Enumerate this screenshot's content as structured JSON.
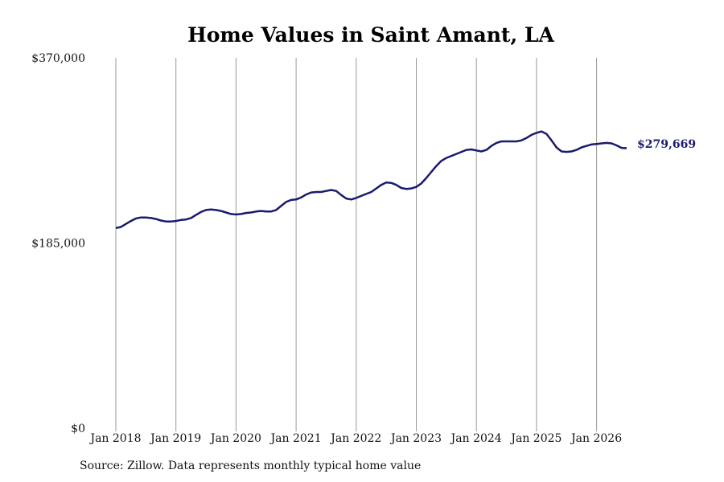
{
  "chart_data": {
    "type": "line",
    "title": "Home Values in Saint Amant, LA",
    "xlabel": "",
    "ylabel": "",
    "ylim": [
      0,
      370000
    ],
    "y_ticks": [
      "$0",
      "$185,000",
      "$370,000"
    ],
    "y_tick_values": [
      0,
      185000,
      370000
    ],
    "x_ticks": [
      "Jan 2018",
      "Jan 2019",
      "Jan 2020",
      "Jan 2021",
      "Jan 2022",
      "Jan 2023",
      "Jan 2024",
      "Jan 2025",
      "Jan 2026"
    ],
    "grid": "vertical",
    "line_color": "#1a1a6e",
    "end_label": "$279,669",
    "series": [
      {
        "x": [
          "2018-01",
          "2018-02",
          "2018-03",
          "2018-04",
          "2018-05",
          "2018-06",
          "2018-07",
          "2018-08",
          "2018-09",
          "2018-10",
          "2018-11",
          "2018-12",
          "2019-01",
          "2019-02",
          "2019-03",
          "2019-04",
          "2019-05",
          "2019-06",
          "2019-07",
          "2019-08",
          "2019-09",
          "2019-10",
          "2019-11",
          "2019-12",
          "2020-01",
          "2020-02",
          "2020-03",
          "2020-04",
          "2020-05",
          "2020-06",
          "2020-07",
          "2020-08",
          "2020-09",
          "2020-10",
          "2020-11",
          "2020-12",
          "2021-01",
          "2021-02",
          "2021-03",
          "2021-04",
          "2021-05",
          "2021-06",
          "2021-07",
          "2021-08",
          "2021-09",
          "2021-10",
          "2021-11",
          "2021-12",
          "2022-01",
          "2022-02",
          "2022-03",
          "2022-04",
          "2022-05",
          "2022-06",
          "2022-07",
          "2022-08",
          "2022-09",
          "2022-10",
          "2022-11",
          "2022-12",
          "2023-01",
          "2023-02",
          "2023-03",
          "2023-04",
          "2023-05",
          "2023-06",
          "2023-07",
          "2023-08",
          "2023-09",
          "2023-10",
          "2023-11",
          "2023-12",
          "2024-01",
          "2024-02",
          "2024-03",
          "2024-04",
          "2024-05",
          "2024-06",
          "2024-07",
          "2024-08",
          "2024-09",
          "2024-10",
          "2024-11",
          "2024-12",
          "2025-01",
          "2025-02",
          "2025-03",
          "2025-04",
          "2025-05",
          "2025-06",
          "2025-07",
          "2025-08",
          "2025-09",
          "2025-10",
          "2025-11",
          "2025-12",
          "2026-01",
          "2026-02",
          "2026-03",
          "2026-04",
          "2026-05",
          "2026-06",
          "2026-07"
        ],
        "values": [
          200000,
          201000,
          204000,
          207000,
          209500,
          210500,
          210500,
          210000,
          209000,
          207500,
          206500,
          206500,
          207000,
          208000,
          208500,
          210000,
          213000,
          216000,
          218000,
          218500,
          218000,
          217000,
          215500,
          214000,
          213500,
          214000,
          215000,
          215500,
          216500,
          217000,
          216500,
          216500,
          218000,
          222000,
          226000,
          228000,
          228500,
          230500,
          233500,
          235500,
          236000,
          236000,
          237000,
          238000,
          237000,
          233000,
          229500,
          228500,
          230000,
          232000,
          234000,
          236000,
          239500,
          243000,
          245500,
          245000,
          243000,
          240000,
          239000,
          239500,
          241000,
          244500,
          250000,
          256000,
          262000,
          267000,
          270000,
          272000,
          274000,
          276000,
          278000,
          278500,
          277500,
          276500,
          278000,
          282000,
          285000,
          286500,
          286500,
          286500,
          286500,
          287500,
          290000,
          293000,
          295000,
          296500,
          294000,
          287500,
          280500,
          276500,
          276000,
          276500,
          278000,
          280500,
          282000,
          283500,
          284000,
          284500,
          285000,
          284500,
          282500,
          280000,
          279669
        ]
      }
    ]
  },
  "source": "Source: Zillow. Data represents monthly typical home value"
}
